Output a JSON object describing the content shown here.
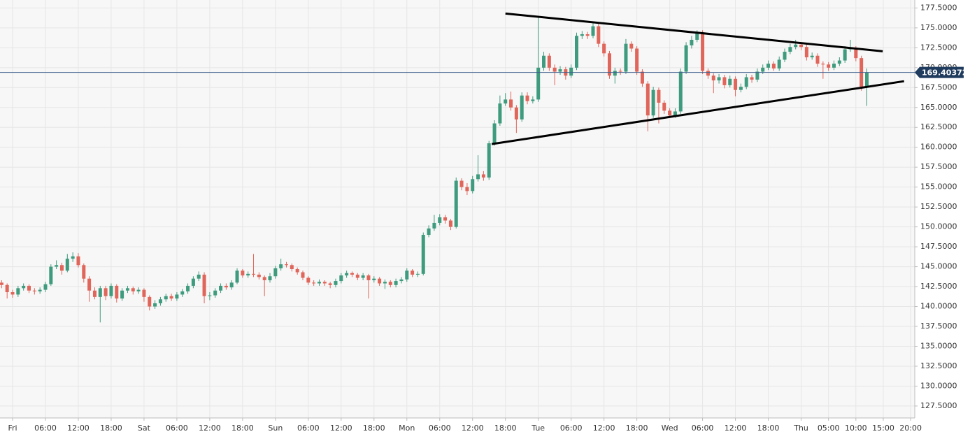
{
  "chart_data": {
    "type": "candlestick",
    "x": [
      -2,
      -1,
      0,
      1,
      2,
      3,
      4,
      5,
      6,
      7,
      8,
      9,
      10,
      11,
      12,
      13,
      14,
      15,
      16,
      17,
      18,
      19,
      20,
      21,
      22,
      23,
      24,
      25,
      26,
      27,
      28,
      29,
      30,
      31,
      32,
      33,
      34,
      35,
      36,
      37,
      38,
      39,
      40,
      41,
      42,
      43,
      44,
      45,
      46,
      47,
      48,
      49,
      50,
      51,
      52,
      53,
      54,
      55,
      56,
      57,
      58,
      59,
      60,
      61,
      62,
      63,
      64,
      65,
      66,
      67,
      68,
      69,
      70,
      71,
      72,
      73,
      74,
      75,
      76,
      77,
      78,
      79,
      80,
      81,
      82,
      83,
      84,
      85,
      86,
      87,
      88,
      89,
      90,
      91,
      92,
      93,
      94,
      95,
      96,
      97,
      98,
      99,
      100,
      101,
      102,
      103,
      104,
      105,
      106,
      107,
      108,
      109,
      110,
      111,
      112,
      113,
      114,
      115,
      116,
      117,
      118,
      119,
      120,
      121,
      122,
      123,
      124,
      125,
      126,
      127,
      128,
      129,
      130,
      131,
      132,
      133,
      134,
      135,
      136,
      137,
      138,
      139,
      140,
      141,
      142,
      143,
      144,
      145,
      146,
      147,
      148,
      149,
      150,
      151,
      152,
      153,
      154,
      155,
      156
    ],
    "open": [
      143.0,
      142.7,
      141.8,
      141.5,
      142.3,
      142.6,
      142.0,
      141.9,
      142.1,
      142.8,
      145.0,
      145.2,
      144.5,
      146.0,
      146.3,
      145.2,
      143.5,
      142.0,
      141.2,
      142.3,
      141.3,
      142.6,
      141.0,
      142.0,
      142.3,
      141.9,
      142.1,
      141.2,
      140.0,
      140.4,
      140.9,
      141.3,
      141.0,
      141.5,
      141.9,
      142.6,
      143.5,
      144.0,
      141.3,
      141.4,
      142.0,
      142.6,
      142.4,
      143.0,
      144.5,
      143.9,
      144.1,
      144.0,
      143.7,
      143.3,
      143.8,
      144.8,
      145.3,
      145.2,
      144.7,
      144.3,
      143.6,
      143.0,
      142.9,
      143.1,
      142.9,
      142.7,
      143.2,
      143.9,
      144.2,
      144.0,
      143.6,
      143.9,
      143.3,
      143.5,
      142.9,
      143.1,
      142.7,
      143.2,
      143.4,
      144.5,
      144.0,
      144.1,
      149.0,
      149.8,
      150.5,
      151.2,
      150.8,
      150.0,
      155.8,
      155.0,
      154.5,
      156.0,
      156.6,
      156.2,
      160.5,
      163.0,
      165.5,
      166.0,
      165.0,
      163.5,
      166.5,
      165.8,
      166.0,
      170.0,
      171.5,
      170.0,
      169.5,
      169.8,
      169.0,
      170.0,
      174.0,
      174.2,
      174.0,
      175.2,
      173.0,
      171.8,
      169.0,
      169.6,
      169.5,
      173.0,
      172.4,
      169.5,
      168.0,
      164.0,
      167.2,
      165.6,
      164.6,
      164.0,
      164.5,
      169.5,
      172.8,
      173.5,
      174.4,
      169.6,
      169.0,
      168.4,
      168.8,
      167.8,
      168.6,
      167.2,
      167.6,
      168.8,
      168.5,
      169.5,
      170.0,
      170.5,
      169.9,
      171.0,
      172.0,
      172.6,
      172.9,
      172.6,
      171.3,
      171.5,
      170.5,
      170.4,
      170.0,
      170.5,
      170.9,
      172.3,
      172.4,
      171.2,
      167.6
    ],
    "high": [
      143.3,
      142.9,
      142.1,
      142.6,
      142.9,
      142.8,
      142.3,
      142.4,
      143.1,
      145.3,
      145.8,
      145.5,
      146.6,
      146.8,
      146.7,
      145.4,
      143.8,
      142.4,
      142.6,
      142.6,
      142.9,
      142.8,
      142.3,
      142.6,
      142.5,
      142.4,
      142.3,
      141.4,
      140.8,
      141.2,
      141.6,
      141.6,
      141.8,
      142.2,
      142.9,
      143.8,
      144.4,
      144.3,
      141.8,
      142.3,
      142.9,
      142.9,
      143.3,
      144.8,
      144.7,
      144.4,
      146.6,
      144.3,
      143.9,
      144.2,
      145.1,
      146.0,
      145.6,
      145.4,
      144.9,
      144.5,
      143.8,
      143.3,
      143.4,
      143.3,
      143.1,
      143.5,
      144.2,
      144.5,
      144.4,
      144.2,
      144.2,
      144.1,
      143.8,
      143.7,
      143.4,
      143.3,
      143.5,
      143.7,
      144.8,
      144.7,
      144.4,
      149.3,
      150.2,
      151.5,
      151.6,
      151.5,
      151.0,
      156.2,
      156.1,
      155.5,
      156.4,
      159.0,
      157.0,
      160.8,
      163.4,
      166.5,
      166.8,
      167.0,
      165.3,
      166.9,
      166.9,
      166.4,
      176.3,
      172.0,
      171.8,
      170.4,
      170.2,
      170.1,
      170.4,
      174.4,
      174.6,
      174.5,
      175.8,
      175.5,
      173.3,
      172.1,
      170.0,
      169.9,
      173.6,
      173.3,
      172.7,
      169.8,
      168.3,
      167.6,
      167.5,
      165.9,
      164.9,
      164.9,
      169.9,
      173.2,
      174.0,
      174.7,
      174.7,
      169.9,
      169.3,
      169.2,
      169.1,
      169.0,
      168.9,
      168.0,
      169.2,
      169.1,
      169.9,
      170.4,
      170.9,
      170.8,
      171.4,
      172.4,
      173.0,
      173.5,
      173.2,
      172.9,
      171.9,
      171.8,
      170.8,
      170.7,
      170.9,
      171.3,
      172.7,
      173.5,
      172.7,
      171.5,
      169.9
    ],
    "low": [
      142.3,
      141.0,
      141.1,
      141.2,
      142.0,
      141.7,
      141.5,
      141.6,
      141.8,
      142.6,
      144.7,
      144.0,
      144.3,
      145.6,
      144.9,
      143.0,
      140.6,
      140.9,
      138.0,
      140.8,
      141.0,
      140.5,
      140.7,
      141.7,
      141.5,
      141.6,
      140.6,
      139.5,
      139.7,
      140.1,
      140.6,
      140.7,
      140.7,
      141.2,
      141.6,
      142.3,
      143.2,
      140.4,
      140.8,
      141.1,
      141.7,
      142.1,
      142.1,
      142.8,
      143.6,
      143.6,
      143.7,
      143.4,
      141.3,
      143.0,
      143.5,
      144.5,
      144.9,
      144.4,
      144.0,
      143.3,
      142.7,
      142.6,
      142.6,
      142.6,
      142.3,
      142.4,
      142.9,
      143.6,
      143.7,
      143.3,
      143.3,
      141.0,
      143.0,
      142.6,
      142.2,
      142.4,
      142.4,
      142.9,
      143.1,
      143.7,
      143.7,
      143.9,
      148.7,
      149.5,
      150.2,
      150.4,
      149.6,
      149.8,
      154.6,
      154.0,
      154.2,
      155.7,
      155.8,
      155.9,
      160.2,
      162.7,
      165.2,
      164.6,
      161.8,
      163.2,
      165.4,
      165.5,
      165.7,
      169.6,
      169.6,
      167.8,
      169.1,
      168.5,
      168.7,
      169.7,
      173.6,
      173.6,
      173.7,
      172.6,
      171.4,
      168.6,
      168.0,
      169.1,
      169.2,
      172.0,
      169.1,
      167.6,
      162.0,
      163.7,
      163.0,
      164.2,
      163.7,
      163.7,
      164.2,
      169.2,
      172.4,
      173.2,
      169.2,
      168.6,
      166.8,
      168.0,
      167.4,
      167.5,
      166.4,
      166.9,
      167.3,
      168.1,
      168.2,
      169.2,
      169.7,
      169.6,
      169.6,
      170.7,
      171.7,
      172.3,
      172.2,
      170.9,
      171.0,
      170.1,
      168.6,
      169.6,
      169.7,
      170.2,
      170.6,
      172.0,
      170.8,
      167.1,
      165.2
    ],
    "close": [
      142.7,
      141.8,
      141.5,
      142.3,
      142.6,
      142.0,
      141.9,
      142.1,
      142.8,
      145.0,
      145.2,
      144.5,
      146.0,
      146.3,
      145.2,
      143.5,
      142.0,
      141.2,
      142.3,
      141.3,
      142.6,
      141.0,
      142.0,
      142.3,
      141.9,
      142.1,
      141.2,
      140.0,
      140.4,
      140.9,
      141.3,
      141.0,
      141.5,
      141.9,
      142.6,
      143.5,
      144.0,
      141.3,
      141.4,
      142.0,
      142.6,
      142.4,
      143.0,
      144.5,
      143.9,
      144.1,
      144.0,
      143.7,
      143.3,
      143.8,
      144.8,
      145.3,
      145.2,
      144.7,
      144.3,
      143.6,
      143.0,
      142.9,
      143.1,
      142.9,
      142.7,
      143.2,
      143.9,
      144.2,
      144.0,
      143.6,
      143.9,
      143.3,
      143.5,
      142.9,
      143.1,
      142.7,
      143.2,
      143.4,
      144.5,
      144.0,
      144.1,
      149.0,
      149.8,
      150.5,
      151.2,
      150.8,
      150.0,
      155.8,
      155.0,
      154.5,
      156.0,
      156.6,
      156.2,
      160.5,
      163.0,
      165.5,
      166.0,
      165.0,
      163.5,
      166.5,
      165.8,
      166.0,
      170.0,
      171.5,
      170.0,
      169.5,
      169.8,
      169.0,
      170.0,
      174.0,
      174.2,
      174.0,
      175.2,
      173.0,
      171.8,
      169.0,
      169.6,
      169.5,
      173.0,
      172.4,
      169.5,
      168.0,
      164.0,
      167.2,
      165.6,
      164.6,
      164.0,
      164.5,
      169.5,
      172.8,
      173.5,
      174.4,
      169.6,
      169.0,
      168.4,
      168.8,
      167.8,
      168.6,
      167.2,
      167.6,
      168.8,
      168.5,
      169.5,
      170.0,
      170.5,
      169.9,
      171.0,
      172.0,
      172.6,
      172.9,
      172.6,
      171.3,
      171.5,
      170.5,
      170.4,
      170.0,
      170.5,
      170.9,
      172.3,
      172.4,
      171.2,
      167.6,
      169.40372
    ],
    "up_color": "#3e9b7e",
    "down_color": "#e0655a",
    "price_line_color": "#3f5f8f",
    "grid": true,
    "xlim": [
      -2.3,
      164.75
    ],
    "xticks": [
      {
        "value": 0,
        "label": "Fri"
      },
      {
        "value": 6,
        "label": "06:00"
      },
      {
        "value": 12,
        "label": "12:00"
      },
      {
        "value": 18,
        "label": "18:00"
      },
      {
        "value": 24,
        "label": "Sat"
      },
      {
        "value": 30,
        "label": "06:00"
      },
      {
        "value": 36,
        "label": "12:00"
      },
      {
        "value": 42,
        "label": "18:00"
      },
      {
        "value": 48,
        "label": "Sun"
      },
      {
        "value": 54,
        "label": "06:00"
      },
      {
        "value": 60,
        "label": "12:00"
      },
      {
        "value": 66,
        "label": "18:00"
      },
      {
        "value": 72,
        "label": "Mon"
      },
      {
        "value": 78,
        "label": "06:00"
      },
      {
        "value": 84,
        "label": "12:00"
      },
      {
        "value": 90,
        "label": "18:00"
      },
      {
        "value": 96,
        "label": "Tue"
      },
      {
        "value": 102,
        "label": "06:00"
      },
      {
        "value": 108,
        "label": "12:00"
      },
      {
        "value": 114,
        "label": "18:00"
      },
      {
        "value": 120,
        "label": "Wed"
      },
      {
        "value": 126,
        "label": "06:00"
      },
      {
        "value": 132,
        "label": "12:00"
      },
      {
        "value": 138,
        "label": "18:00"
      },
      {
        "value": 144,
        "label": "Thu"
      },
      {
        "value": 149,
        "label": "05:00"
      },
      {
        "value": 154,
        "label": "10:00"
      },
      {
        "value": 159,
        "label": "15:00"
      },
      {
        "value": 164,
        "label": "20:00"
      }
    ],
    "ylim": [
      126,
      178.5
    ],
    "yticks": [
      {
        "value": 127.5,
        "label": "127.5000"
      },
      {
        "value": 130,
        "label": "130.0000"
      },
      {
        "value": 132.5,
        "label": "132.5000"
      },
      {
        "value": 135,
        "label": "135.0000"
      },
      {
        "value": 137.5,
        "label": "137.5000"
      },
      {
        "value": 140,
        "label": "140.0000"
      },
      {
        "value": 142.5,
        "label": "142.5000"
      },
      {
        "value": 145,
        "label": "145.0000"
      },
      {
        "value": 147.5,
        "label": "147.5000"
      },
      {
        "value": 150,
        "label": "150.0000"
      },
      {
        "value": 152.5,
        "label": "152.5000"
      },
      {
        "value": 155,
        "label": "155.0000"
      },
      {
        "value": 157.5,
        "label": "157.5000"
      },
      {
        "value": 160,
        "label": "160.0000"
      },
      {
        "value": 162.5,
        "label": "162.5000"
      },
      {
        "value": 165,
        "label": "165.0000"
      },
      {
        "value": 167.5,
        "label": "167.5000"
      },
      {
        "value": 170,
        "label": "170.0000"
      },
      {
        "value": 172.5,
        "label": "172.5000"
      },
      {
        "value": 175,
        "label": "175.0000"
      },
      {
        "value": 177.5,
        "label": "177.5000"
      }
    ],
    "trendlines": [
      {
        "x": [
          90,
          158.9
        ],
        "y": [
          176.8,
          172.06
        ],
        "color": "#000000"
      },
      {
        "x": [
          87.5,
          162.8
        ],
        "y": [
          160.4,
          168.3
        ],
        "color": "#000000"
      }
    ]
  }
}
